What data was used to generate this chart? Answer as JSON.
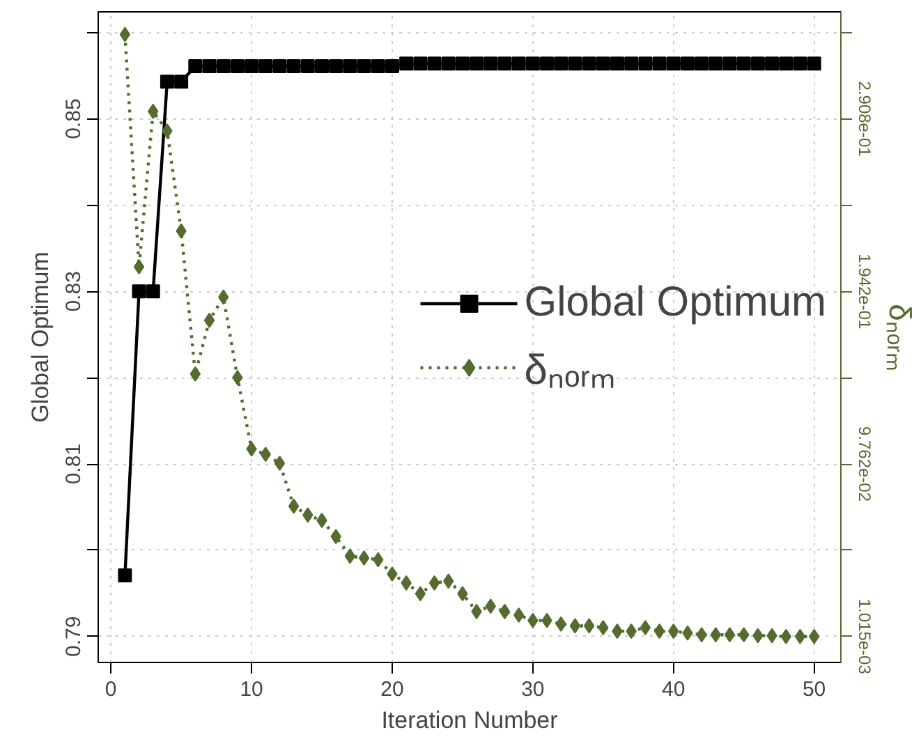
{
  "chart_data": {
    "type": "line",
    "xlabel": "Iteration Number",
    "ylabel": "Global Optimum",
    "y2label": "δₙₒᵣₘ",
    "x": [
      1,
      2,
      3,
      4,
      5,
      6,
      7,
      8,
      9,
      10,
      11,
      12,
      13,
      14,
      15,
      16,
      17,
      18,
      19,
      20,
      21,
      22,
      23,
      24,
      25,
      26,
      27,
      28,
      29,
      30,
      31,
      32,
      33,
      34,
      35,
      36,
      37,
      38,
      39,
      40,
      41,
      42,
      43,
      44,
      45,
      46,
      47,
      48,
      49,
      50
    ],
    "series": [
      {
        "name": "Global Optimum",
        "color": "#000000",
        "marker": "square",
        "line_style": "solid",
        "values": [
          0.7971,
          0.83,
          0.83,
          0.8543,
          0.8543,
          0.8561,
          0.8561,
          0.8561,
          0.8561,
          0.8561,
          0.8561,
          0.8561,
          0.8561,
          0.8561,
          0.8561,
          0.8561,
          0.8561,
          0.8561,
          0.8561,
          0.8561,
          0.8564,
          0.8564,
          0.8564,
          0.8564,
          0.8564,
          0.8564,
          0.8564,
          0.8564,
          0.8564,
          0.8564,
          0.8564,
          0.8564,
          0.8564,
          0.8564,
          0.8564,
          0.8564,
          0.8564,
          0.8564,
          0.8564,
          0.8564,
          0.8564,
          0.8564,
          0.8564,
          0.8564,
          0.8564,
          0.8564,
          0.8564,
          0.8564,
          0.8564,
          0.8564
        ]
      },
      {
        "name": "δₙₒᵣₘ",
        "color": "#556b2f",
        "marker": "diamond",
        "line_style": "dotted",
        "axis": "y2",
        "values": [
          0.338,
          0.208,
          0.295,
          0.284,
          0.228,
          0.148,
          0.178,
          0.191,
          0.146,
          0.106,
          0.103,
          0.098,
          0.074,
          0.069,
          0.066,
          0.057,
          0.046,
          0.045,
          0.044,
          0.036,
          0.031,
          0.025,
          0.031,
          0.032,
          0.025,
          0.015,
          0.018,
          0.015,
          0.013,
          0.01,
          0.01,
          0.008,
          0.007,
          0.007,
          0.006,
          0.004,
          0.004,
          0.006,
          0.004,
          0.004,
          0.003,
          0.002,
          0.002,
          0.002,
          0.002,
          0.0015,
          0.0015,
          0.001,
          0.001,
          0.001
        ]
      }
    ],
    "xlim": [
      -0.9,
      51.9
    ],
    "xticks": [
      0,
      10,
      20,
      30,
      40,
      50
    ],
    "ylim": [
      0.787,
      0.8624
    ],
    "yticks": [
      0.79,
      {
        "value": 0.8,
        "label": null
      },
      0.81,
      {
        "value": 0.82,
        "label": null
      },
      0.83,
      {
        "value": 0.84,
        "label": null
      },
      0.85,
      {
        "value": 0.86,
        "label": null
      }
    ],
    "y2lim": [
      -0.0135,
      0.3507
    ],
    "y2ticks": [
      {
        "value": 0.001015,
        "label": "1.015e-03"
      },
      {
        "value": 0.04932,
        "label": null
      },
      {
        "value": 0.09762,
        "label": "9.762e-02"
      },
      {
        "value": 0.1459,
        "label": null
      },
      {
        "value": 0.1942,
        "label": "1.942e-01"
      },
      {
        "value": 0.2425,
        "label": null
      },
      {
        "value": 0.2908,
        "label": "2.908e-01"
      },
      {
        "value": 0.3391,
        "label": null
      }
    ],
    "grid": true,
    "legend": "right"
  }
}
